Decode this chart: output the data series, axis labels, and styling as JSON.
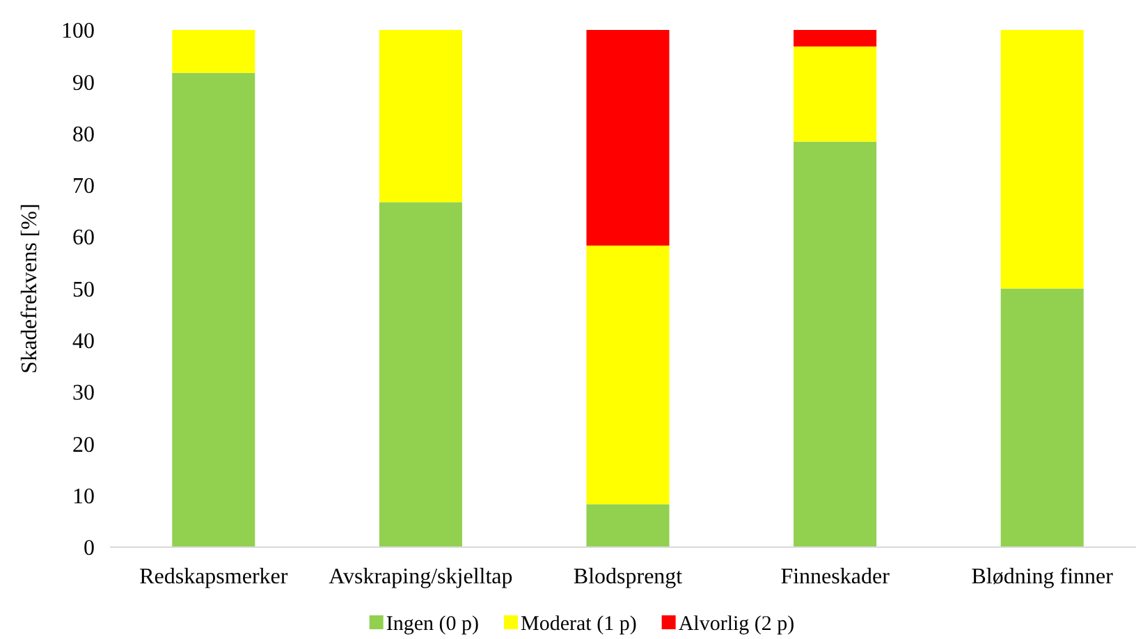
{
  "chart_data": {
    "type": "bar",
    "stacked": true,
    "ylabel": "Skadefrekvens [%]",
    "categories": [
      "Redskapsmerker",
      "Avskraping/skjelltap",
      "Blodsprengt",
      "Finneskader",
      "Blødning finner"
    ],
    "series": [
      {
        "name": "Ingen (0 p)",
        "color": "#92d050",
        "values": [
          91.7,
          66.7,
          8.3,
          78.4,
          50
        ]
      },
      {
        "name": "Moderat (1 p)",
        "color": "#ffff00",
        "values": [
          8.3,
          33.3,
          50,
          18.4,
          50
        ]
      },
      {
        "name": "Alvorlig (2 p)",
        "color": "#ff0000",
        "values": [
          0,
          0,
          41.7,
          3.2,
          0
        ]
      }
    ],
    "ylim": [
      0,
      100
    ],
    "yticks": [
      0,
      10,
      20,
      30,
      40,
      50,
      60,
      70,
      80,
      90,
      100
    ],
    "grid": false,
    "legend": "bottom"
  }
}
